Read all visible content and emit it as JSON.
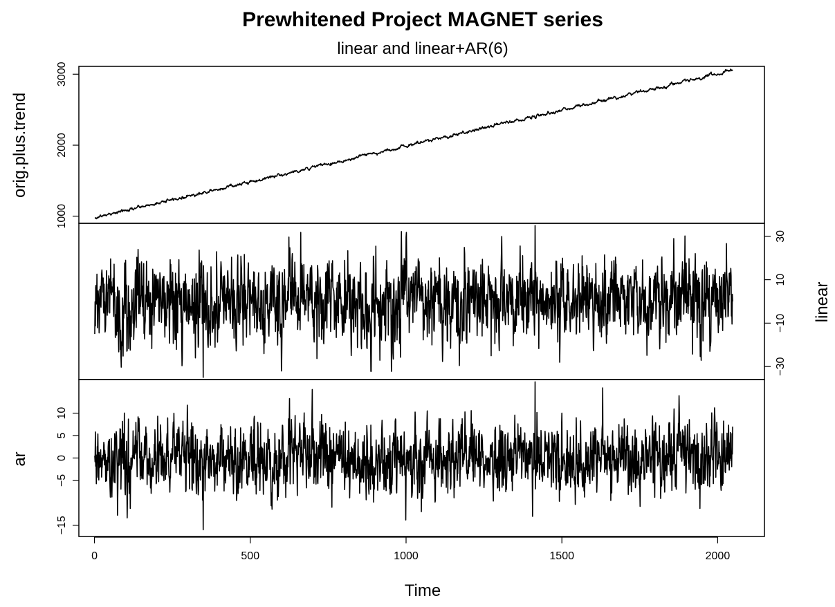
{
  "title": "Prewhitened Project MAGNET series",
  "subtitle": "linear and linear+AR(6)",
  "chart_data": [
    {
      "type": "line",
      "panel": "top",
      "ylabel": "orig.plus.trend",
      "ylabel_side": "left",
      "yticks": [
        1000,
        2000,
        3000
      ],
      "ylim": [
        900,
        3110
      ],
      "xlim": [
        -50,
        2150
      ],
      "n": 2048,
      "series": [
        {
          "x_start": 1,
          "x_end": 2048,
          "y_start": 980,
          "y_end": 3050,
          "noise_amplitude": 15
        }
      ],
      "color": "#000000"
    },
    {
      "type": "line",
      "panel": "middle",
      "ylabel": "linear",
      "ylabel_side": "right",
      "yticks": [
        -30,
        -10,
        10,
        30
      ],
      "ylim": [
        -36,
        36
      ],
      "xlim": [
        -50,
        2150
      ],
      "n": 2048,
      "series": [
        {
          "x_start": 1,
          "x_end": 2048,
          "mean": 0,
          "sd": 10,
          "min": -35,
          "max": 35,
          "start_value": -15,
          "end_value": 0
        }
      ],
      "color": "#000000"
    },
    {
      "type": "line",
      "panel": "bottom",
      "ylabel": "ar",
      "ylabel_side": "left",
      "yticks": [
        -15,
        -5,
        0,
        5,
        10
      ],
      "ylim": [
        -17.5,
        17.5
      ],
      "xlim": [
        -50,
        2150
      ],
      "xticks": [
        0,
        500,
        1000,
        1500,
        2000
      ],
      "xlabel": "Time",
      "n": 2048,
      "series": [
        {
          "x_start": 1,
          "x_end": 2048,
          "mean": 0,
          "sd": 4,
          "min": -16,
          "max": 17,
          "start_value": 0.5,
          "end_value": 7
        }
      ],
      "color": "#000000"
    }
  ]
}
